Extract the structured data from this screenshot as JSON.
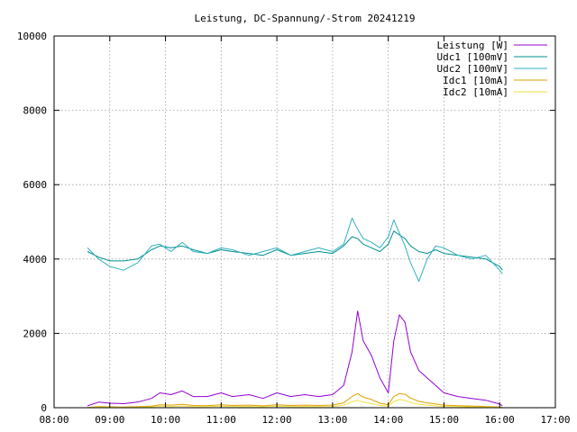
{
  "chart_data": {
    "type": "line",
    "title": "Leistung, DC-Spannung/-Strom 20241219",
    "xlabel": "",
    "ylabel": "",
    "xlim": [
      8.0,
      17.0
    ],
    "ylim": [
      0,
      10000
    ],
    "x_ticks": [
      "08:00",
      "09:00",
      "10:00",
      "11:00",
      "12:00",
      "13:00",
      "14:00",
      "15:00",
      "16:00",
      "17:00"
    ],
    "y_ticks": [
      "0",
      "2000",
      "4000",
      "6000",
      "8000",
      "10000"
    ],
    "grid": true,
    "legend_position": "top-right",
    "x_hours": [
      8.6,
      8.8,
      9.0,
      9.25,
      9.5,
      9.75,
      9.9,
      10.1,
      10.3,
      10.5,
      10.75,
      11.0,
      11.2,
      11.5,
      11.75,
      12.0,
      12.25,
      12.5,
      12.75,
      13.0,
      13.2,
      13.35,
      13.45,
      13.55,
      13.7,
      13.85,
      14.0,
      14.1,
      14.2,
      14.3,
      14.4,
      14.55,
      14.7,
      14.85,
      15.0,
      15.25,
      15.5,
      15.75,
      16.0,
      16.05
    ],
    "series": [
      {
        "name": "Leistung [W]",
        "color": "#9400d3",
        "values": [
          50,
          150,
          120,
          110,
          150,
          250,
          400,
          350,
          450,
          300,
          300,
          400,
          300,
          350,
          250,
          400,
          300,
          350,
          300,
          350,
          600,
          1500,
          2600,
          1800,
          1400,
          800,
          400,
          1800,
          2500,
          2300,
          1500,
          1000,
          800,
          600,
          400,
          300,
          250,
          200,
          100,
          50
        ]
      },
      {
        "name": "Udc1 [100mV]",
        "color": "#009090",
        "values": [
          4200,
          4050,
          3950,
          3950,
          4000,
          4250,
          4350,
          4300,
          4350,
          4250,
          4150,
          4250,
          4200,
          4150,
          4100,
          4250,
          4100,
          4150,
          4200,
          4150,
          4350,
          4600,
          4550,
          4400,
          4300,
          4200,
          4400,
          4750,
          4650,
          4550,
          4350,
          4200,
          4150,
          4250,
          4150,
          4100,
          4050,
          4000,
          3800,
          3700
        ]
      },
      {
        "name": "Udc2 [100mV]",
        "color": "#30b0c0",
        "values": [
          4300,
          4000,
          3800,
          3700,
          3900,
          4350,
          4400,
          4200,
          4450,
          4200,
          4150,
          4300,
          4250,
          4100,
          4200,
          4300,
          4100,
          4200,
          4300,
          4200,
          4400,
          5100,
          4800,
          4550,
          4450,
          4300,
          4600,
          5050,
          4700,
          4350,
          3900,
          3400,
          4000,
          4350,
          4300,
          4100,
          4000,
          4100,
          3700,
          3600
        ]
      },
      {
        "name": "Idc1 [10mA]",
        "color": "#e0a000",
        "values": [
          5,
          30,
          25,
          20,
          30,
          40,
          80,
          70,
          90,
          60,
          55,
          80,
          60,
          70,
          50,
          80,
          60,
          70,
          60,
          70,
          130,
          300,
          380,
          280,
          220,
          120,
          80,
          300,
          380,
          360,
          260,
          170,
          130,
          100,
          70,
          55,
          45,
          35,
          20,
          10
        ]
      },
      {
        "name": "Idc2 [10mA]",
        "color": "#f0e040",
        "values": [
          3,
          15,
          12,
          10,
          15,
          25,
          40,
          35,
          45,
          30,
          30,
          40,
          30,
          35,
          25,
          40,
          30,
          35,
          30,
          35,
          65,
          160,
          200,
          150,
          110,
          60,
          40,
          160,
          220,
          200,
          140,
          90,
          70,
          50,
          35,
          28,
          22,
          18,
          10,
          5
        ]
      }
    ]
  }
}
